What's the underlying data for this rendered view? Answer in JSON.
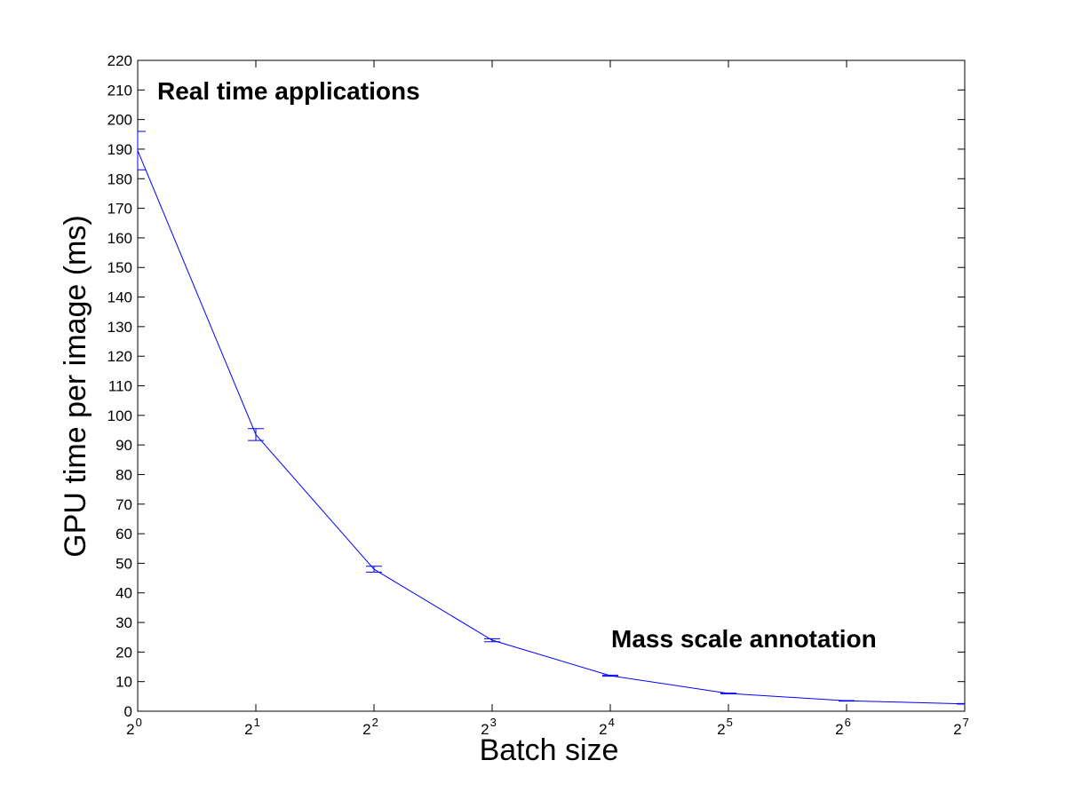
{
  "chart_data": {
    "type": "line",
    "title": "",
    "xlabel": "Batch size",
    "ylabel": "GPU time per image (ms)",
    "x_scale": "log2",
    "x": [
      1,
      2,
      4,
      8,
      16,
      32,
      64,
      128
    ],
    "x_tick_labels": [
      {
        "base": "2",
        "exp": "0"
      },
      {
        "base": "2",
        "exp": "1"
      },
      {
        "base": "2",
        "exp": "2"
      },
      {
        "base": "2",
        "exp": "3"
      },
      {
        "base": "2",
        "exp": "4"
      },
      {
        "base": "2",
        "exp": "5"
      },
      {
        "base": "2",
        "exp": "6"
      },
      {
        "base": "2",
        "exp": "7"
      }
    ],
    "xlim": [
      1,
      128
    ],
    "ylim": [
      0,
      220
    ],
    "y_ticks": [
      0,
      10,
      20,
      30,
      40,
      50,
      60,
      70,
      80,
      90,
      100,
      110,
      120,
      130,
      140,
      150,
      160,
      170,
      180,
      190,
      200,
      210,
      220
    ],
    "grid": false,
    "series": [
      {
        "color": "#0000ff",
        "values": [
          189.5,
          93.5,
          48,
          24,
          12,
          6,
          3.5,
          2.5
        ],
        "error_low": [
          183,
          91.5,
          47,
          23.5,
          11.8,
          5.9,
          3.4,
          2.4
        ],
        "error_high": [
          196,
          95.5,
          49,
          24.5,
          12.2,
          6.1,
          3.6,
          2.6
        ]
      }
    ],
    "annotations": [
      {
        "text": "Real time applications",
        "position": "top-left"
      },
      {
        "text": "Mass scale annotation",
        "position": "bottom-right"
      }
    ]
  }
}
